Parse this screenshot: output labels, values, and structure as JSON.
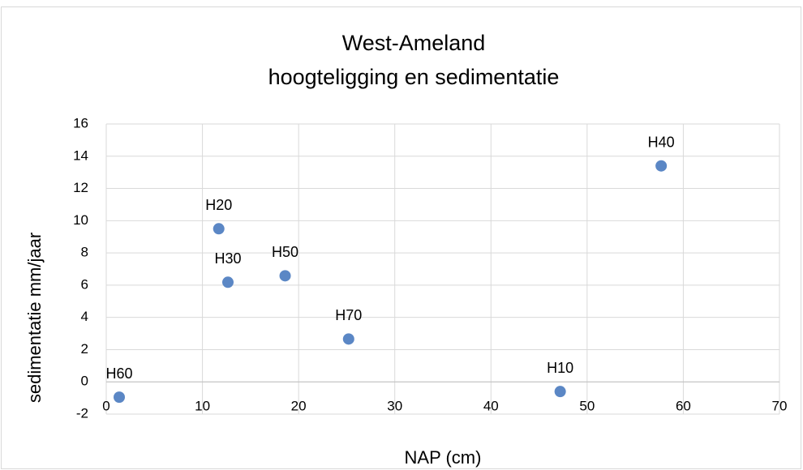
{
  "chart_data": {
    "type": "scatter",
    "title": [
      "West-Ameland",
      "hoogteligging en sedimentatie"
    ],
    "x_label": "NAP (cm)",
    "y_label": "sedimentatie mm/jaar",
    "series": [
      {
        "color": "#5b87c5",
        "x": [
          1.35,
          11.7,
          12.65,
          18.6,
          25.2,
          47.2,
          57.7
        ],
        "values": [
          -0.95,
          9.5,
          6.18,
          6.58,
          2.66,
          -0.6,
          13.4
        ],
        "labels": [
          "H60",
          "H20",
          "H30",
          "H50",
          "H70",
          "H10",
          "H40"
        ]
      }
    ],
    "xlim": [
      0,
      70
    ],
    "xticks": [
      0,
      10,
      20,
      30,
      40,
      50,
      60,
      70
    ],
    "ylim": [
      -2,
      16
    ],
    "yticks": [
      -2,
      0,
      2,
      4,
      6,
      8,
      10,
      12,
      14,
      16
    ],
    "grid": true
  }
}
